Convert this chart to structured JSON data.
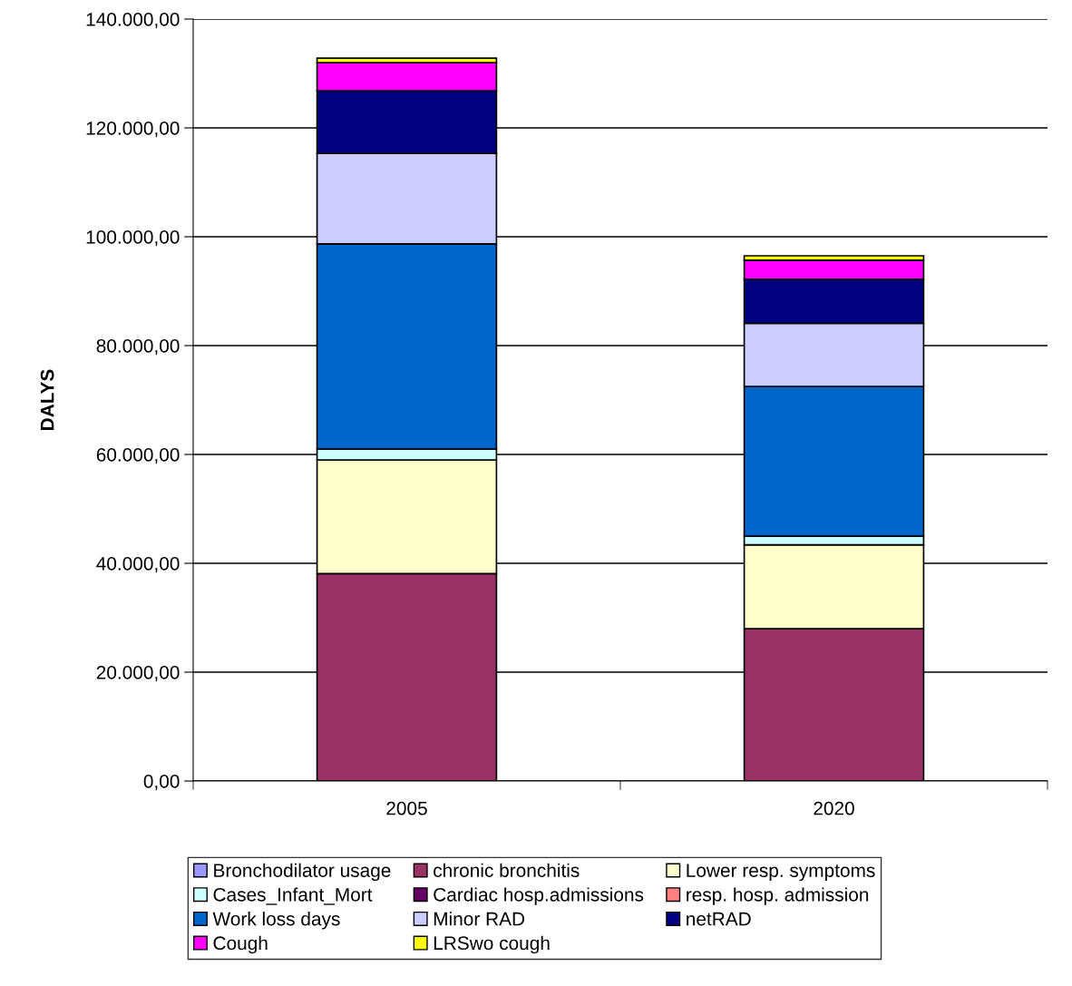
{
  "chart_data": {
    "type": "bar",
    "stacked": true,
    "ylabel": "DALYS",
    "categories": [
      "2005",
      "2020"
    ],
    "series": [
      {
        "name": "Bronchodilator usage",
        "color": "#9999ff",
        "values": [
          0,
          0
        ]
      },
      {
        "name": "chronic bronchitis",
        "color": "#993366",
        "values": [
          38100,
          28000
        ]
      },
      {
        "name": "Lower resp. symptoms",
        "color": "#ffffcc",
        "values": [
          20900,
          15400
        ]
      },
      {
        "name": "Cases_Infant_Mort",
        "color": "#ccffff",
        "values": [
          2000,
          1600
        ]
      },
      {
        "name": "Cardiac hosp.admissions",
        "color": "#660066",
        "values": [
          null,
          null
        ]
      },
      {
        "name": "resp. hosp. admission",
        "color": "#ff8080",
        "values": [
          null,
          null
        ]
      },
      {
        "name": "Work loss days",
        "color": "#0066cc",
        "values": [
          37700,
          27500
        ]
      },
      {
        "name": "Minor RAD",
        "color": "#ccccff",
        "values": [
          16600,
          11600
        ]
      },
      {
        "name": "netRAD",
        "color": "#000080",
        "values": [
          11500,
          8100
        ]
      },
      {
        "name": "Cough",
        "color": "#ff00ff",
        "values": [
          5200,
          3500
        ]
      },
      {
        "name": "LRSwo cough",
        "color": "#ffff00",
        "values": [
          800,
          800
        ]
      }
    ],
    "ylim": [
      0,
      140000
    ],
    "yticks": [
      {
        "value": 0,
        "label": "0,00"
      },
      {
        "value": 20000,
        "label": "20.000,00"
      },
      {
        "value": 40000,
        "label": "40.000,00"
      },
      {
        "value": 60000,
        "label": "60.000,00"
      },
      {
        "value": 80000,
        "label": "80.000,00"
      },
      {
        "value": 100000,
        "label": "100.000,00"
      },
      {
        "value": 120000,
        "label": "120.000,00"
      },
      {
        "value": 140000,
        "label": "140.000,00"
      }
    ],
    "grid": "y",
    "legend": "bottom"
  }
}
